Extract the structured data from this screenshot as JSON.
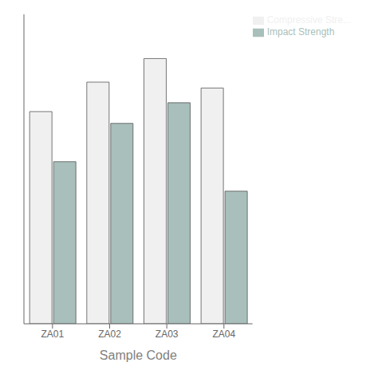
{
  "chart_data": {
    "type": "bar",
    "xlabel": "Sample Code",
    "categories": [
      "ZA01",
      "ZA02",
      "ZA03",
      "ZA04"
    ],
    "series": [
      {
        "name": "Compressive Stre...",
        "color": "#f0f0f0",
        "values": [
          0.72,
          0.82,
          0.9,
          0.8
        ]
      },
      {
        "name": "Impact Strength",
        "color": "#a8bfbb",
        "values": [
          0.55,
          0.68,
          0.75,
          0.45
        ]
      }
    ],
    "ylim": [
      0,
      1.05
    ],
    "yticks": [],
    "grid": false,
    "legend": "upper right",
    "tick_labels": "x"
  }
}
